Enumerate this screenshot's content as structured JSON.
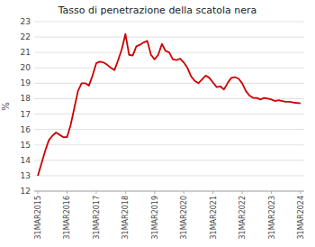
{
  "chart_data": {
    "type": "line",
    "title": "Tasso di penetrazione della scatola nera",
    "ylabel": "%",
    "x": [
      0,
      0.5,
      1,
      1.5,
      2,
      2.5,
      3,
      3.5,
      4,
      4.5,
      5,
      5.5,
      6,
      6.5,
      7,
      7.5,
      8,
      8.5,
      9,
      9.5,
      10,
      10.5,
      11,
      11.5,
      12,
      12.5,
      13,
      13.5,
      14,
      14.5,
      15,
      15.5,
      16,
      16.5,
      17,
      17.5,
      18,
      18.5,
      19,
      19.5,
      20,
      20.5,
      21,
      21.5,
      22,
      22.5,
      23,
      23.5,
      24,
      24.5,
      25,
      25.5,
      26,
      26.5,
      27,
      27.5,
      28,
      28.5,
      29,
      29.5,
      30,
      30.5,
      31,
      31.5,
      32,
      32.5,
      33,
      33.5,
      34,
      34.5,
      35,
      36
    ],
    "values": [
      13.0,
      13.8,
      14.6,
      15.3,
      15.6,
      15.8,
      15.65,
      15.5,
      15.5,
      16.3,
      17.4,
      18.5,
      19.0,
      19.0,
      18.85,
      19.5,
      20.3,
      20.4,
      20.35,
      20.2,
      20.0,
      19.85,
      20.5,
      21.2,
      22.2,
      20.85,
      20.8,
      21.4,
      21.5,
      21.65,
      21.75,
      20.85,
      20.55,
      20.85,
      21.55,
      21.1,
      21.0,
      20.55,
      20.5,
      20.6,
      20.35,
      20.0,
      19.45,
      19.15,
      19.0,
      19.25,
      19.5,
      19.35,
      19.05,
      18.75,
      18.8,
      18.6,
      19.0,
      19.35,
      19.4,
      19.3,
      19.0,
      18.5,
      18.2,
      18.05,
      18.05,
      17.95,
      18.05,
      18.0,
      17.95,
      17.85,
      17.9,
      17.85,
      17.8,
      17.8,
      17.75,
      17.7
    ],
    "color": "#cc0000",
    "xlim": [
      -0.5,
      36.5
    ],
    "xticks": [
      {
        "value": 0,
        "label": "31MAR2015"
      },
      {
        "value": 4,
        "label": "31MAR2016"
      },
      {
        "value": 8,
        "label": "31MAR2017"
      },
      {
        "value": 12,
        "label": "31MAR2018"
      },
      {
        "value": 16,
        "label": "31MAR2019"
      },
      {
        "value": 20,
        "label": "31MAR2020"
      },
      {
        "value": 24,
        "label": "31MAR2021"
      },
      {
        "value": 28,
        "label": "31MAR2022"
      },
      {
        "value": 32,
        "label": "31MAR2023"
      },
      {
        "value": 36,
        "label": "31MAR2024"
      }
    ],
    "ylim": [
      12,
      23
    ],
    "yticks": [
      12,
      13,
      14,
      15,
      16,
      17,
      18,
      19,
      20,
      21,
      22,
      23
    ],
    "grid": true
  }
}
